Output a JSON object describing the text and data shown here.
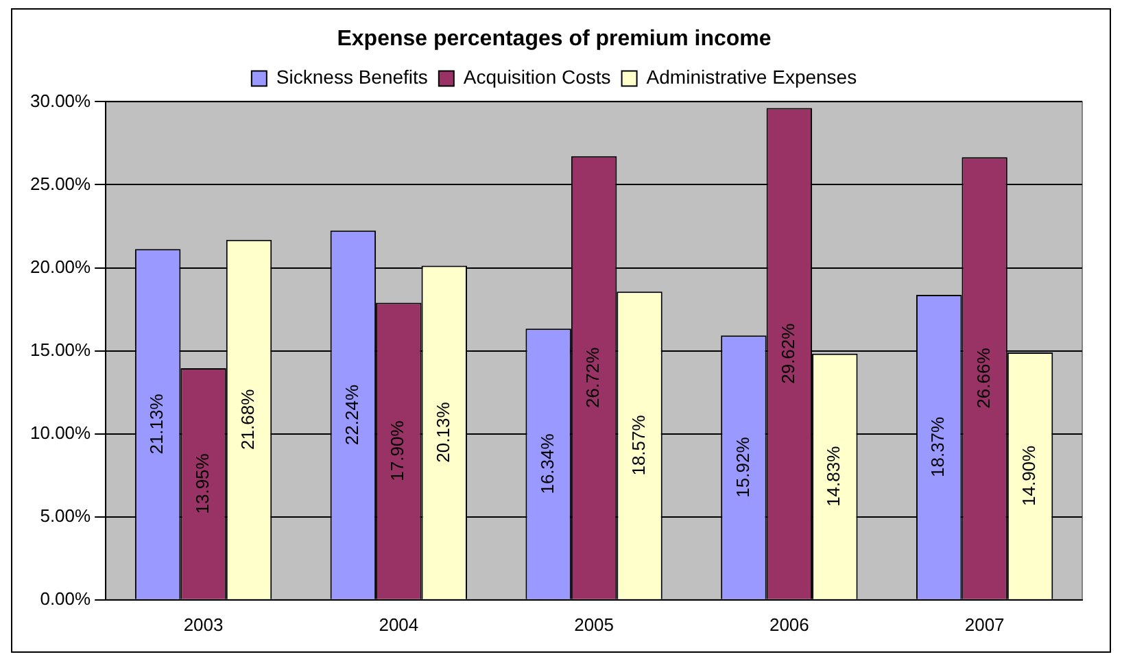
{
  "chart_data": {
    "type": "bar",
    "title": "Expense percentages of premium income",
    "categories": [
      "2003",
      "2004",
      "2005",
      "2006",
      "2007"
    ],
    "series": [
      {
        "name": "Sickness Benefits",
        "color": "#9999ff",
        "values": [
          21.13,
          22.24,
          16.34,
          15.92,
          18.37
        ],
        "value_labels": [
          "21.13%",
          "22.24%",
          "16.34%",
          "15.92%",
          "18.37%"
        ]
      },
      {
        "name": "Acquisition Costs",
        "color": "#993366",
        "values": [
          13.95,
          17.9,
          26.72,
          29.62,
          26.66
        ],
        "value_labels": [
          "13.95%",
          "17.90%",
          "26.72%",
          "29.62%",
          "26.66%"
        ]
      },
      {
        "name": "Administrative Expenses",
        "color": "#ffffcc",
        "values": [
          21.68,
          20.13,
          18.57,
          14.83,
          14.9
        ],
        "value_labels": [
          "21.68%",
          "20.13%",
          "18.57%",
          "14.83%",
          "14.90%"
        ]
      }
    ],
    "ylim": [
      0,
      30
    ],
    "yticks": [
      {
        "value": 0,
        "label": "0.00%"
      },
      {
        "value": 5,
        "label": "5.00%"
      },
      {
        "value": 10,
        "label": "10.00%"
      },
      {
        "value": 15,
        "label": "15.00%"
      },
      {
        "value": 20,
        "label": "20.00%"
      },
      {
        "value": 25,
        "label": "25.00%"
      },
      {
        "value": 30,
        "label": "30.00%"
      }
    ],
    "grid": "y",
    "legend": "top"
  }
}
